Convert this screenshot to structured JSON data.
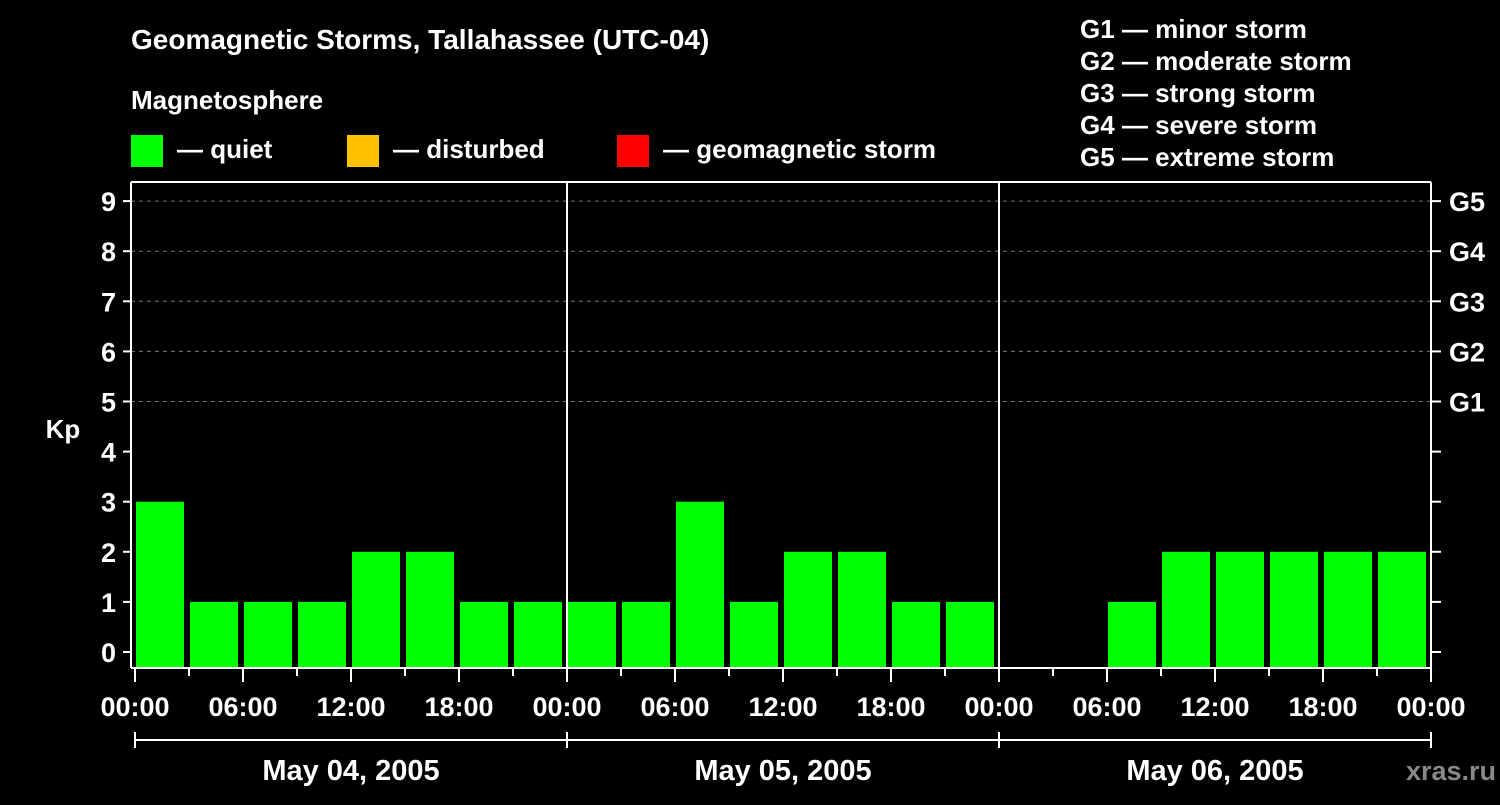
{
  "header": {
    "title": "Geomagnetic Storms, Tallahassee (UTC-04)",
    "subtitle": "Magnetosphere"
  },
  "legend": {
    "items": [
      {
        "label": "— quiet",
        "color": "#00ff00"
      },
      {
        "label": "— disturbed",
        "color": "#ffc000"
      },
      {
        "label": "— geomagnetic storm",
        "color": "#ff0000"
      }
    ],
    "scale": [
      "G1 — minor storm",
      "G2 — moderate storm",
      "G3 — strong storm",
      "G4 — severe storm",
      "G5 — extreme storm"
    ]
  },
  "watermark": "xras.ru",
  "chart_data": {
    "type": "bar",
    "ylabel": "Kp",
    "ylim": [
      0,
      9
    ],
    "yticks": [
      "0",
      "1",
      "2",
      "3",
      "4",
      "5",
      "6",
      "7",
      "8",
      "9"
    ],
    "right_ticks": [
      {
        "kp": 5,
        "label": "G1"
      },
      {
        "kp": 6,
        "label": "G2"
      },
      {
        "kp": 7,
        "label": "G3"
      },
      {
        "kp": 8,
        "label": "G4"
      },
      {
        "kp": 9,
        "label": "G5"
      }
    ],
    "xticks": [
      "00:00",
      "06:00",
      "12:00",
      "18:00",
      "00:00",
      "06:00",
      "12:00",
      "18:00",
      "00:00",
      "06:00",
      "12:00",
      "18:00",
      "00:00"
    ],
    "days": [
      "May 04, 2005",
      "May 05, 2005",
      "May 06, 2005"
    ],
    "hours_per_bar": 3,
    "values": [
      3,
      1,
      1,
      1,
      2,
      2,
      1,
      1,
      1,
      1,
      3,
      1,
      2,
      2,
      1,
      1,
      0,
      0,
      1,
      2,
      2,
      2,
      2,
      2
    ],
    "colors": [
      "#00ff00",
      "#00ff00",
      "#00ff00",
      "#00ff00",
      "#00ff00",
      "#00ff00",
      "#00ff00",
      "#00ff00",
      "#00ff00",
      "#00ff00",
      "#00ff00",
      "#00ff00",
      "#00ff00",
      "#00ff00",
      "#00ff00",
      "#00ff00",
      "#00ff00",
      "#00ff00",
      "#00ff00",
      "#00ff00",
      "#00ff00",
      "#00ff00",
      "#00ff00",
      "#00ff00"
    ]
  }
}
